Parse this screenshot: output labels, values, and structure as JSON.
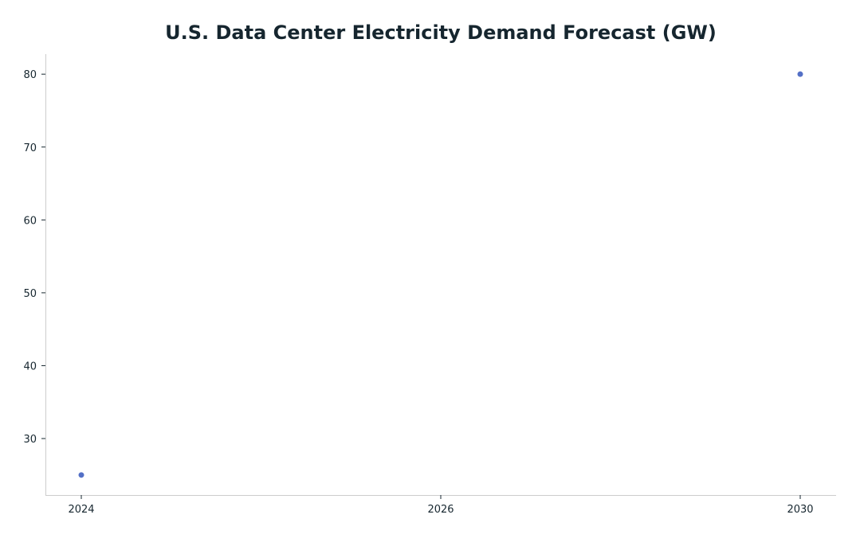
{
  "colors": {
    "title": "#16262f",
    "axis": "#cccccc",
    "tick_text": "#16262f",
    "point": "#5470c6"
  },
  "chart_data": {
    "type": "scatter",
    "title": "U.S. Data Center Electricity Demand Forecast (GW)",
    "xlabel": "",
    "ylabel": "",
    "x_ticks": [
      "2024",
      "2026",
      "2030"
    ],
    "y_ticks": [
      30,
      40,
      50,
      60,
      70,
      80
    ],
    "ylim": [
      22.25,
      82.75
    ],
    "grid": false,
    "legend": "none",
    "series": [
      {
        "points": [
          {
            "x": "2024",
            "y": 25
          },
          {
            "x": "2030",
            "y": 80
          }
        ]
      }
    ]
  }
}
